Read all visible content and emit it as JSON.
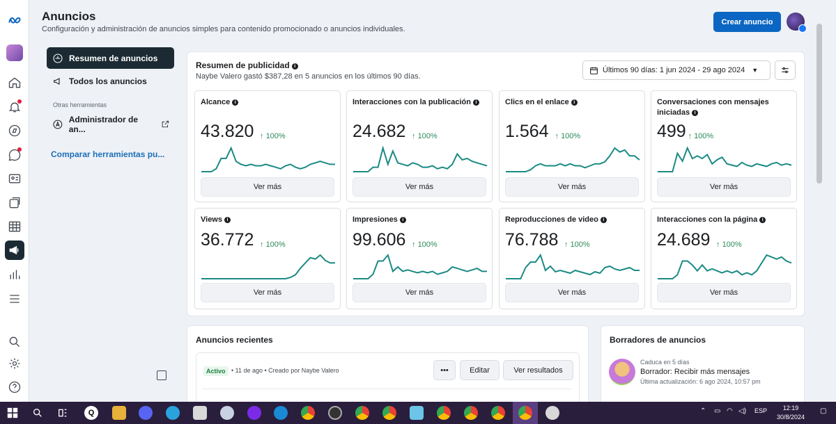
{
  "header": {
    "title": "Anuncios",
    "subtitle": "Configuración y administración de anuncios simples para contenido promocionado o anuncios individuales.",
    "create_button": "Crear anuncio"
  },
  "nav": {
    "items": [
      {
        "label": "Resumen de anuncios"
      },
      {
        "label": "Todos los anuncios"
      }
    ],
    "section": "Otras herramientas",
    "tool": "Administrador de an...",
    "compare": "Comparar herramientas pu..."
  },
  "summary": {
    "title": "Resumen de publicidad",
    "subtitle": "Naybe Valero gastó $387,28 en 5 anuncios en los últimos 90 días.",
    "date_range": "Últimos 90 días: 1 jun 2024 - 29 ago 2024",
    "see_more": "Ver más",
    "cards": [
      {
        "title": "Alcance",
        "value": "43.820",
        "delta": "100%",
        "series": [
          0,
          0,
          0,
          2,
          9,
          9,
          16,
          7,
          5,
          4,
          5,
          4,
          4,
          5,
          4,
          3,
          2,
          4,
          5,
          3,
          2,
          3,
          5,
          6,
          7,
          6,
          5,
          5
        ]
      },
      {
        "title": "Interacciones con la publicación",
        "value": "24.682",
        "delta": "100%",
        "series": [
          0,
          0,
          0,
          0,
          3,
          3,
          16,
          5,
          14,
          6,
          5,
          4,
          6,
          5,
          3,
          3,
          4,
          2,
          3,
          2,
          5,
          12,
          8,
          9,
          7,
          6,
          5,
          4
        ]
      },
      {
        "title": "Clics en el enlace",
        "value": "1.564",
        "delta": "100%",
        "series": [
          0,
          0,
          0,
          0,
          0,
          1,
          3,
          4,
          3,
          3,
          3,
          4,
          3,
          4,
          3,
          3,
          2,
          3,
          4,
          4,
          5,
          8,
          12,
          10,
          11,
          8,
          8,
          6
        ]
      },
      {
        "title": "Conversaciones con mensajes iniciadas",
        "value": "499",
        "delta": "100%",
        "series": [
          0,
          0,
          0,
          0,
          14,
          8,
          18,
          10,
          12,
          10,
          13,
          6,
          9,
          11,
          6,
          5,
          4,
          7,
          5,
          4,
          6,
          5,
          4,
          6,
          7,
          5,
          6,
          5
        ]
      },
      {
        "title": "Views",
        "value": "36.772",
        "delta": "100%",
        "series": [
          0,
          0,
          0,
          0,
          0,
          0,
          0,
          0,
          0,
          0,
          0,
          0,
          0,
          0,
          0,
          0,
          0,
          0,
          1,
          3,
          8,
          12,
          16,
          15,
          18,
          14,
          12,
          12
        ]
      },
      {
        "title": "Impresiones",
        "value": "99.606",
        "delta": "100%",
        "series": [
          0,
          0,
          0,
          0,
          3,
          12,
          12,
          16,
          5,
          8,
          5,
          6,
          5,
          4,
          5,
          4,
          5,
          3,
          4,
          5,
          8,
          7,
          6,
          5,
          6,
          7,
          5,
          5
        ]
      },
      {
        "title": "Reproducciones de video",
        "value": "76.788",
        "delta": "100%",
        "series": [
          0,
          0,
          0,
          0,
          8,
          12,
          12,
          17,
          6,
          9,
          5,
          6,
          5,
          4,
          6,
          5,
          4,
          3,
          5,
          4,
          8,
          9,
          7,
          6,
          7,
          8,
          6,
          6
        ]
      },
      {
        "title": "Interacciones con la página",
        "value": "24.689",
        "delta": "100%",
        "series": [
          0,
          0,
          0,
          0,
          2,
          9,
          9,
          7,
          4,
          7,
          4,
          5,
          4,
          3,
          4,
          3,
          4,
          2,
          3,
          2,
          4,
          8,
          12,
          11,
          10,
          11,
          9,
          8
        ]
      }
    ]
  },
  "recent": {
    "title": "Anuncios recientes",
    "status": "Activo",
    "meta": "• 11 de ago • Creado por Naybe Valero",
    "more_button": "•••",
    "edit_button": "Editar",
    "results_button": "Ver resultados"
  },
  "drafts": {
    "title": "Borradores de anuncios",
    "expires": "Caduca en 5 días",
    "name": "Borrador: Recibir más mensajes",
    "updated": "Última actualización: 6 ago 2024, 10:57 pm"
  },
  "taskbar": {
    "lang": "ESP",
    "time": "12:19",
    "date": "30/8/2024"
  },
  "colors": {
    "accent": "#0a66c2",
    "positive": "#2b8a5a",
    "sparkline": "#1a8a84",
    "active_nav": "#1c2b33"
  }
}
